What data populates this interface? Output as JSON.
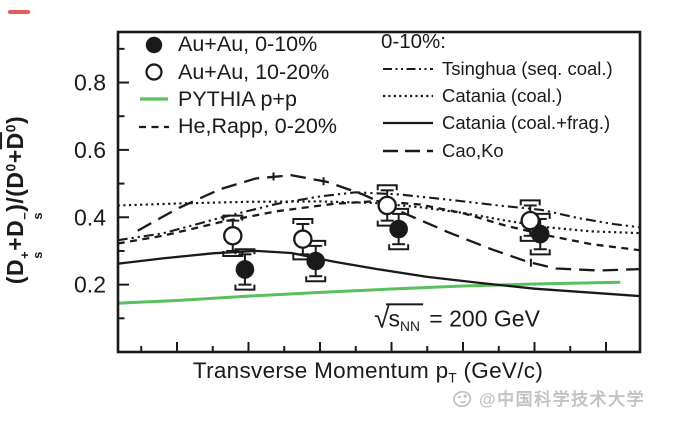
{
  "chart_data": {
    "type": "line",
    "title": "",
    "xlabel": "Transverse Momentum pT (GeV/c)",
    "ylabel": "(Ds+ + Ds-)/(D0 + D0bar)",
    "annotation": "sqrt(sNN) = 200 GeV",
    "xlim": [
      0.17,
      7.48
    ],
    "ylim": [
      0,
      0.95
    ],
    "x_major_ticks": [
      1,
      2,
      3,
      4,
      5,
      6,
      7
    ],
    "x_minor_ticks": [
      0.5,
      1.5,
      2.5,
      3.5,
      4.5,
      5.5,
      6.5
    ],
    "y_major_ticks": [
      0.2,
      0.4,
      0.6,
      0.8
    ],
    "y_tick_labels": [
      "0.2",
      "0.4",
      "0.6",
      "0.8"
    ],
    "y_minor_ticks": [
      0.1,
      0.3,
      0.5,
      0.7,
      0.9
    ],
    "grid": "off",
    "series": [
      {
        "id": "pythia-pp",
        "name": "PYTHIA p+p",
        "color": "#5abf5d",
        "width": 3,
        "dash": "",
        "points": [
          [
            0.17,
            0.145
          ],
          [
            1,
            0.153
          ],
          [
            2,
            0.166
          ],
          [
            3,
            0.177
          ],
          [
            4,
            0.187
          ],
          [
            5,
            0.196
          ],
          [
            6,
            0.202
          ],
          [
            7.2,
            0.207
          ]
        ]
      },
      {
        "id": "cao-ko",
        "name": "Cao,Ko",
        "color": "#1a1a1a",
        "width": 2.3,
        "dash": "15.5 8",
        "points": [
          [
            0.45,
            0.36
          ],
          [
            1.0,
            0.425
          ],
          [
            1.6,
            0.483
          ],
          [
            2.1,
            0.515
          ],
          [
            2.6,
            0.525
          ],
          [
            3.1,
            0.505
          ],
          [
            3.6,
            0.468
          ],
          [
            4.2,
            0.41
          ],
          [
            4.8,
            0.355
          ],
          [
            5.4,
            0.305
          ],
          [
            5.9,
            0.268
          ],
          [
            6.3,
            0.248
          ],
          [
            6.9,
            0.242
          ],
          [
            7.48,
            0.246
          ]
        ],
        "tick_marks": [
          [
            2.35,
            0.521
          ],
          [
            3.05,
            0.507
          ],
          [
            5.95,
            0.265
          ]
        ]
      },
      {
        "id": "tsinghua-seq-coal",
        "name": "Tsinghua (seq. coal.)",
        "color": "#1a1a1a",
        "width": 2.1,
        "dash": "10 4 2.2 4 2.2 4",
        "points": [
          [
            0.17,
            0.332
          ],
          [
            0.8,
            0.352
          ],
          [
            1.6,
            0.398
          ],
          [
            2.4,
            0.44
          ],
          [
            3.0,
            0.462
          ],
          [
            3.5,
            0.474
          ],
          [
            4.1,
            0.468
          ],
          [
            4.8,
            0.452
          ],
          [
            5.5,
            0.435
          ],
          [
            6.1,
            0.422
          ],
          [
            6.6,
            0.398
          ],
          [
            7.1,
            0.38
          ],
          [
            7.48,
            0.37
          ]
        ]
      },
      {
        "id": "catania-coal",
        "name": "Catania (coal.)",
        "color": "#1a1a1a",
        "width": 2.2,
        "dash": "2.2 3.4",
        "points": [
          [
            0.17,
            0.435
          ],
          [
            1.0,
            0.441
          ],
          [
            2.0,
            0.446
          ],
          [
            3.0,
            0.447
          ],
          [
            3.8,
            0.442
          ],
          [
            4.4,
            0.43
          ],
          [
            5.0,
            0.413
          ],
          [
            5.6,
            0.39
          ],
          [
            6.2,
            0.37
          ],
          [
            6.8,
            0.358
          ],
          [
            7.48,
            0.353
          ]
        ]
      },
      {
        "id": "he-rapp",
        "name": "He,Rapp, 0-20%",
        "color": "#1a1a1a",
        "width": 2.3,
        "dash": "7 5.5",
        "points": [
          [
            0.17,
            0.322
          ],
          [
            0.8,
            0.345
          ],
          [
            1.6,
            0.385
          ],
          [
            2.4,
            0.418
          ],
          [
            3.2,
            0.44
          ],
          [
            3.8,
            0.448
          ],
          [
            4.4,
            0.438
          ],
          [
            5.0,
            0.412
          ],
          [
            5.6,
            0.375
          ],
          [
            6.2,
            0.345
          ],
          [
            6.8,
            0.32
          ],
          [
            7.48,
            0.302
          ]
        ]
      },
      {
        "id": "catania-coal-frag",
        "name": "Catania (coal.+frag.)",
        "color": "#1a1a1a",
        "width": 2.3,
        "dash": "",
        "points": [
          [
            0.17,
            0.262
          ],
          [
            0.8,
            0.278
          ],
          [
            1.5,
            0.293
          ],
          [
            2.1,
            0.3
          ],
          [
            2.6,
            0.294
          ],
          [
            3.2,
            0.268
          ],
          [
            3.8,
            0.246
          ],
          [
            4.5,
            0.223
          ],
          [
            5.2,
            0.206
          ],
          [
            6.0,
            0.188
          ],
          [
            6.8,
            0.176
          ],
          [
            7.48,
            0.166
          ]
        ]
      }
    ],
    "measurements": [
      {
        "id": "auau-0-10",
        "label": "Au+Au, 0-10%",
        "marker": "filled-circle",
        "stat": 0.045,
        "syst": 0.06,
        "points": [
          {
            "pt": 1.95,
            "y": 0.245
          },
          {
            "pt": 2.94,
            "y": 0.27
          },
          {
            "pt": 4.1,
            "y": 0.365
          },
          {
            "pt": 6.08,
            "y": 0.35
          }
        ]
      },
      {
        "id": "auau-10-20",
        "label": "Au+Au, 10-20%",
        "marker": "open-circle",
        "stat": 0.045,
        "syst": 0.06,
        "points": [
          {
            "pt": 1.78,
            "y": 0.345
          },
          {
            "pt": 2.76,
            "y": 0.335
          },
          {
            "pt": 3.94,
            "y": 0.435
          },
          {
            "pt": 5.94,
            "y": 0.39
          }
        ]
      }
    ]
  },
  "labels": {
    "ylabel_parts": [
      {
        "t": "(D"
      },
      {
        "sup": "+",
        "sub": "s"
      },
      {
        "t": "+D"
      },
      {
        "sup": "−",
        "sub": "s"
      },
      {
        "t": ")/(D"
      },
      {
        "sup": "0"
      },
      {
        "t": "+"
      },
      {
        "t": "D",
        "bar": true
      },
      {
        "sup": "0"
      },
      {
        "t": ")"
      }
    ],
    "xlabel_parts": [
      {
        "t": "Transverse Momentum p"
      },
      {
        "sub": "T"
      },
      {
        "t": " (GeV/c)"
      }
    ],
    "annotation_parts": [
      {
        "t": "√",
        "cls": "radsym"
      },
      {
        "t": "s",
        "sub": "NN",
        "cls": "rad"
      },
      {
        "t": " = 200 GeV"
      }
    ]
  },
  "legend_left": {
    "items": [
      {
        "label": "Au+Au, 0-10%",
        "marker": "filled-circle"
      },
      {
        "label": "Au+Au, 10-20%",
        "marker": "open-circle"
      },
      {
        "label": "PYTHIA p+p",
        "marker": "green-solid-line"
      },
      {
        "label": "He,Rapp, 0-20%",
        "marker": "short-dash-line"
      }
    ]
  },
  "legend_right": {
    "title": "0-10%:",
    "items": [
      {
        "label": "Tsinghua (seq. coal.)",
        "marker": "dash-dot-dot-line"
      },
      {
        "label": "Catania (coal.)",
        "marker": "dotted-line"
      },
      {
        "label": "Catania (coal.+frag.)",
        "marker": "solid-line"
      },
      {
        "label": "Cao,Ko",
        "marker": "long-dash-line"
      }
    ]
  },
  "watermark": {
    "text": "@中国科学技术大学"
  },
  "colors": {
    "pythia_green": "#5abf5d",
    "ink": "#1a1a1a",
    "watermark_gray": "#c3c3c3",
    "artifact_red": "#e04040"
  }
}
